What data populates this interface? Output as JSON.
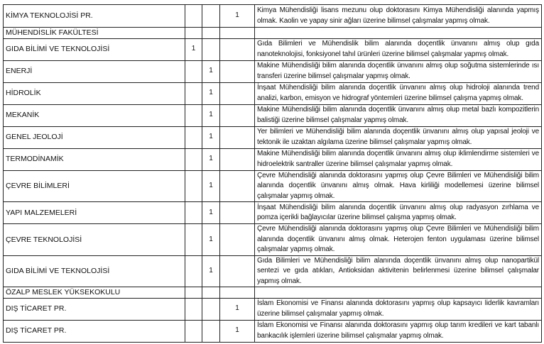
{
  "rows": [
    {
      "name": "KİMYA TEKNOLOJİSİ PR.",
      "c1": "",
      "c2": "",
      "c3": "1",
      "desc": "Kimya Mühendisliği lisans mezunu olup doktorasını Kimya Mühendisliği alanında yapmış olmak. Kaolin ve yapay sinir ağları üzerine bilimsel çalışmalar yapmış olmak."
    },
    {
      "name": "MÜHENDİSLİK FAKÜLTESİ",
      "section": true
    },
    {
      "name": "GIDA BİLİMİ VE TEKNOLOJİSİ",
      "c1": "1",
      "c2": "",
      "c3": "",
      "desc": "Gıda Bilimleri ve Mühendislik bilim alanında doçentlik ünvanını almış olup gıda nanoteknolojisi, fonksiyonel tahıl ürünleri üzerine bilimsel çalışmalar yapmış olmak."
    },
    {
      "name": "ENERJİ",
      "c1": "",
      "c2": "1",
      "c3": "",
      "desc": "Makine Mühendisliği bilim alanında doçentlik ünvanını almış olup soğutma sistemlerinde ısı transferi üzerine bilimsel çalışmalar yapmış olmak."
    },
    {
      "name": "HİDROLİK",
      "c1": "",
      "c2": "1",
      "c3": "",
      "desc": "İnşaat Mühendisliği bilim alanında doçentlik ünvanını almış olup hidroloji alanında trend analizi, karbon, emisyon ve hidrograf yöntemleri üzerine bilimsel çalışma yapmış olmak."
    },
    {
      "name": "MEKANİK",
      "c1": "",
      "c2": "1",
      "c3": "",
      "desc": "Makine Mühendisliği bilim alanında doçentlik ünvanını almış olup metal bazlı kompozitlerin balistiği üzerine bilimsel çalışmalar yapmış olmak."
    },
    {
      "name": "GENEL JEOLOJİ",
      "c1": "",
      "c2": "1",
      "c3": "",
      "desc": "Yer bilimleri ve Mühendisliği bilim alanında doçentlik ünvanını almış olup yapısal jeoloji ve tektonik ile uzaktan algılama üzerine bilimsel çalışmalar yapmış olmak."
    },
    {
      "name": "TERMODİNAMİK",
      "c1": "",
      "c2": "1",
      "c3": "",
      "desc": "Makine Mühendisliği bilim alanında doçentlik ünvanını almış olup iklimlendirme sistemleri ve hidroelektrik santraller üzerine bilimsel çalışmalar yapmış olmak."
    },
    {
      "name": "ÇEVRE BİLİMLERİ",
      "c1": "",
      "c2": "1",
      "c3": "",
      "desc": "Çevre Mühendisliği alanında doktorasını yapmış olup Çevre Bilimleri ve Mühendisliği bilim alanında doçentlik ünvanını almış olmak. Hava kirliliği modellemesi üzerine bilimsel çalışmalar yapmış olmak."
    },
    {
      "name": "YAPI MALZEMELERİ",
      "c1": "",
      "c2": "1",
      "c3": "",
      "desc": "İnşaat Mühendisliği bilim alanında doçentlik ünvanını almış olup radyasyon zırhlama ve pomza içerikli bağlayıcılar üzerine bilimsel çalışma yapmış olmak."
    },
    {
      "name": "ÇEVRE TEKNOLOJİSİ",
      "c1": "",
      "c2": "1",
      "c3": "",
      "desc": "Çevre Mühendisliği alanında doktorasını yapmış olup Çevre Bilimleri ve Mühendisliği bilim alanında doçentlik ünvanını almış olmak. Heterojen fenton uygulaması üzerine bilimsel çalışmalar yapmış olmak."
    },
    {
      "name": "GIDA BİLİMİ VE TEKNOLOJİSİ",
      "c1": "",
      "c2": "1",
      "c3": "",
      "desc": "Gıda Bilimleri ve Mühendisliği bilim alanında doçentlik ünvanını almış olup nanopartikül sentezi ve gıda atıkları, Antioksidan aktivitenin belirlenmesi üzerine bilimsel çalışmalar yapmış olmak."
    },
    {
      "name": "ÖZALP MESLEK YÜKSEKOKULU",
      "section": true
    },
    {
      "name": "DIŞ TİCARET PR.",
      "c1": "",
      "c2": "",
      "c3": "1",
      "desc": "İslam Ekonomisi ve Finansı alanında doktorasını yapmış olup kapsayıcı liderlik kavramları üzerine bilimsel çalışmalar yapmış olmak."
    },
    {
      "name": "DIŞ TİCARET PR.",
      "c1": "",
      "c2": "",
      "c3": "1",
      "desc": "İslam Ekonomisi ve Finansı alanında doktorasını yapmış olup tarım kredileri ve kart tabanlı bankacılık işlemleri üzerine bilimsel çalışmalar yapmış olmak."
    }
  ]
}
